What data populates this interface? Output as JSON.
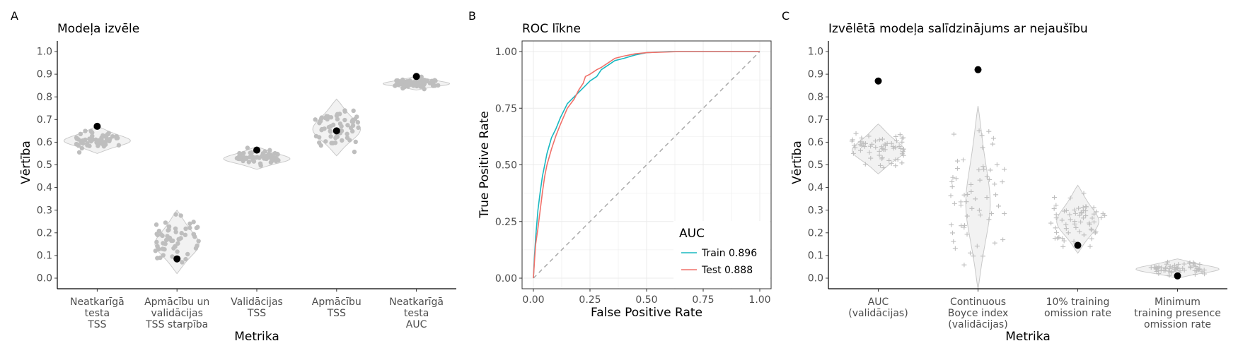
{
  "chart_data": [
    {
      "type": "scatter",
      "panel_letter": "A",
      "title": "Modeļa izvēle",
      "xlabel": "Metrika",
      "ylabel": "Vērtība",
      "ylim": [
        0,
        1
      ],
      "yticks": [
        "0.0",
        "0.1",
        "0.2",
        "0.3",
        "0.4",
        "0.5",
        "0.6",
        "0.7",
        "0.8",
        "0.9",
        "1.0"
      ],
      "grid": false,
      "categories": [
        {
          "label": [
            "Neatkarīgā",
            "testa",
            "TSS"
          ],
          "violin": [
            0.55,
            0.67
          ],
          "selected": 0.67
        },
        {
          "label": [
            "Apmācību un",
            "validācijas",
            "TSS starpība"
          ],
          "violin": [
            0.02,
            0.3
          ],
          "selected": 0.085
        },
        {
          "label": [
            "Validācijas",
            "TSS"
          ],
          "violin": [
            0.48,
            0.58
          ],
          "selected": 0.565
        },
        {
          "label": [
            "Apmācību",
            "TSS"
          ],
          "violin": [
            0.54,
            0.79
          ],
          "selected": 0.65
        },
        {
          "label": [
            "Neatkarīgā",
            "testa",
            "AUC"
          ],
          "violin": [
            0.83,
            0.89
          ],
          "selected": 0.89
        }
      ],
      "colors": {
        "points": "#bebebe",
        "selected": "#000000"
      }
    },
    {
      "type": "line",
      "panel_letter": "B",
      "title": "ROC līkne",
      "xlabel": "False Positive Rate",
      "ylabel": "True Positive Rate",
      "xlim": [
        0,
        1
      ],
      "ylim": [
        0,
        1
      ],
      "xticks": [
        "0.00",
        "0.25",
        "0.50",
        "0.75",
        "1.00"
      ],
      "yticks": [
        "0.00",
        "0.25",
        "0.50",
        "0.75",
        "1.00"
      ],
      "grid": true,
      "legend": {
        "title": "AUC",
        "position": "bottom-right"
      },
      "series": [
        {
          "name": "Train 0.896",
          "color": "#19b8c1",
          "x": [
            0,
            0.005,
            0.01,
            0.02,
            0.03,
            0.04,
            0.05,
            0.06,
            0.08,
            0.1,
            0.12,
            0.15,
            0.18,
            0.2,
            0.22,
            0.25,
            0.28,
            0.3,
            0.33,
            0.36,
            0.4,
            0.45,
            0.5,
            0.6,
            1.0
          ],
          "values": [
            0,
            0.1,
            0.18,
            0.3,
            0.38,
            0.45,
            0.5,
            0.55,
            0.62,
            0.66,
            0.71,
            0.77,
            0.8,
            0.82,
            0.84,
            0.87,
            0.89,
            0.92,
            0.94,
            0.96,
            0.97,
            0.985,
            0.995,
            1.0,
            1.0
          ]
        },
        {
          "name": "Test 0.888",
          "color": "#f0716a",
          "x": [
            0,
            0.005,
            0.01,
            0.02,
            0.03,
            0.04,
            0.05,
            0.06,
            0.08,
            0.1,
            0.12,
            0.15,
            0.18,
            0.2,
            0.22,
            0.23,
            0.25,
            0.28,
            0.3,
            0.33,
            0.36,
            0.4,
            0.45,
            0.5,
            0.65,
            1.0
          ],
          "values": [
            0,
            0.08,
            0.15,
            0.22,
            0.3,
            0.38,
            0.45,
            0.5,
            0.57,
            0.63,
            0.68,
            0.75,
            0.79,
            0.83,
            0.86,
            0.89,
            0.9,
            0.92,
            0.93,
            0.95,
            0.97,
            0.98,
            0.99,
            0.995,
            1.0,
            1.0
          ]
        }
      ],
      "reference_line": {
        "x": [
          0,
          1
        ],
        "values": [
          0,
          1
        ],
        "color": "#aaaaaa"
      }
    },
    {
      "type": "scatter",
      "panel_letter": "C",
      "title": "Izvēlētā modeļa salīdzinājums ar nejaušību",
      "xlabel": "Metrika",
      "ylabel": "Vērtība",
      "ylim": [
        0,
        1
      ],
      "yticks": [
        "0.0",
        "0.1",
        "0.2",
        "0.3",
        "0.4",
        "0.5",
        "0.6",
        "0.7",
        "0.8",
        "0.9",
        "1.0"
      ],
      "grid": false,
      "categories": [
        {
          "label": [
            "AUC",
            "(validācijas)"
          ],
          "violin": [
            0.46,
            0.68
          ],
          "selected": 0.87
        },
        {
          "label": [
            "Continuous",
            "Boyce index",
            "(validācijas)"
          ],
          "violin": [
            -0.05,
            0.76
          ],
          "selected": 0.92
        },
        {
          "label": [
            "10% training",
            "omission rate"
          ],
          "violin": [
            0.11,
            0.41
          ],
          "selected": 0.145
        },
        {
          "label": [
            "Minimum",
            "training presence",
            "omission rate"
          ],
          "violin": [
            0.0,
            0.085
          ],
          "selected": 0.01
        }
      ],
      "colors": {
        "points": "#bebebe",
        "selected": "#000000"
      }
    }
  ]
}
